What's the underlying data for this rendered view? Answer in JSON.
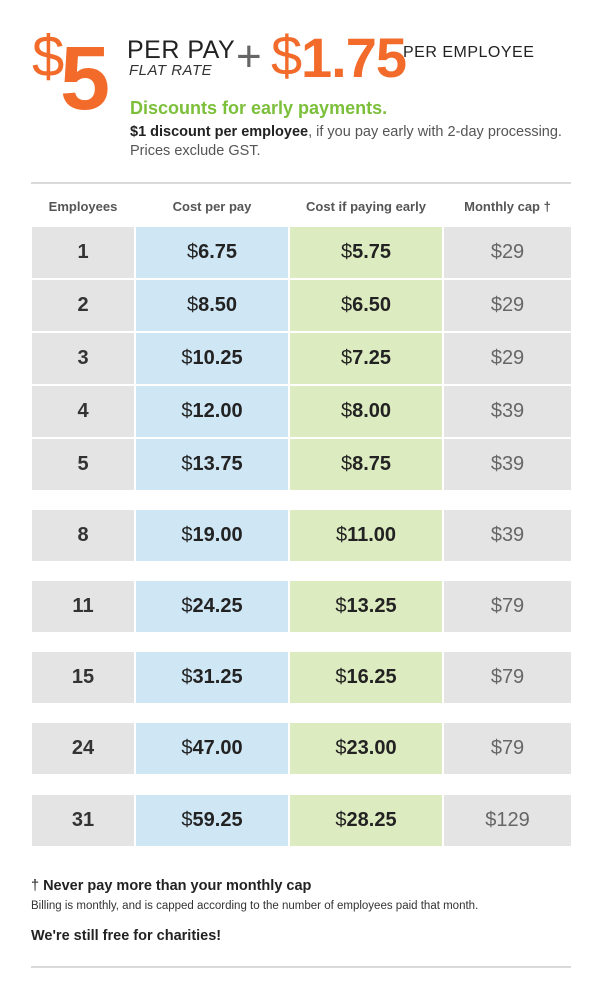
{
  "header": {
    "flat_dollar": "$",
    "flat_amount": "5",
    "per_pay": "PER PAY",
    "flat_rate": "FLAT RATE",
    "plus": "+",
    "employee_dollar": "$",
    "employee_amount": "1.75",
    "per_employee": "PER EMPLOYEE",
    "accent_color": "#f26b2a"
  },
  "discount": {
    "title": "Discounts for early payments.",
    "bold_text": "$1 discount per employee",
    "rest_text": ", if you pay early with 2-day processing. Prices exclude GST.",
    "title_color": "#7cbf3a"
  },
  "table": {
    "headers": [
      "Employees",
      "Cost per pay",
      "Cost if paying early",
      "Monthly cap †"
    ],
    "colors": {
      "employees": "#e4e4e4",
      "cost": "#cfe6f5",
      "early": "#ddebc0",
      "cap": "#e4e4e4"
    },
    "rows": [
      {
        "employees": "1",
        "cost": "6.75",
        "early": "5.75",
        "cap": "29"
      },
      {
        "employees": "2",
        "cost": "8.50",
        "early": "6.50",
        "cap": "29"
      },
      {
        "employees": "3",
        "cost": "10.25",
        "early": "7.25",
        "cap": "29"
      },
      {
        "employees": "4",
        "cost": "12.00",
        "early": "8.00",
        "cap": "39"
      },
      {
        "employees": "5",
        "cost": "13.75",
        "early": "8.75",
        "cap": "39"
      },
      {
        "employees": "8",
        "cost": "19.00",
        "early": "11.00",
        "cap": "39"
      },
      {
        "employees": "11",
        "cost": "24.25",
        "early": "13.25",
        "cap": "79"
      },
      {
        "employees": "15",
        "cost": "31.25",
        "early": "16.25",
        "cap": "79"
      },
      {
        "employees": "24",
        "cost": "47.00",
        "early": "23.00",
        "cap": "79"
      },
      {
        "employees": "31",
        "cost": "59.25",
        "early": "28.25",
        "cap": "129"
      }
    ],
    "currency_symbol": "$"
  },
  "footer": {
    "dagger": "†",
    "cap_note": "Never pay more than your monthly cap",
    "billing_note": "Billing is monthly, and is capped according to the number of employees paid that month.",
    "charity_note": "We're still free for charities!"
  }
}
